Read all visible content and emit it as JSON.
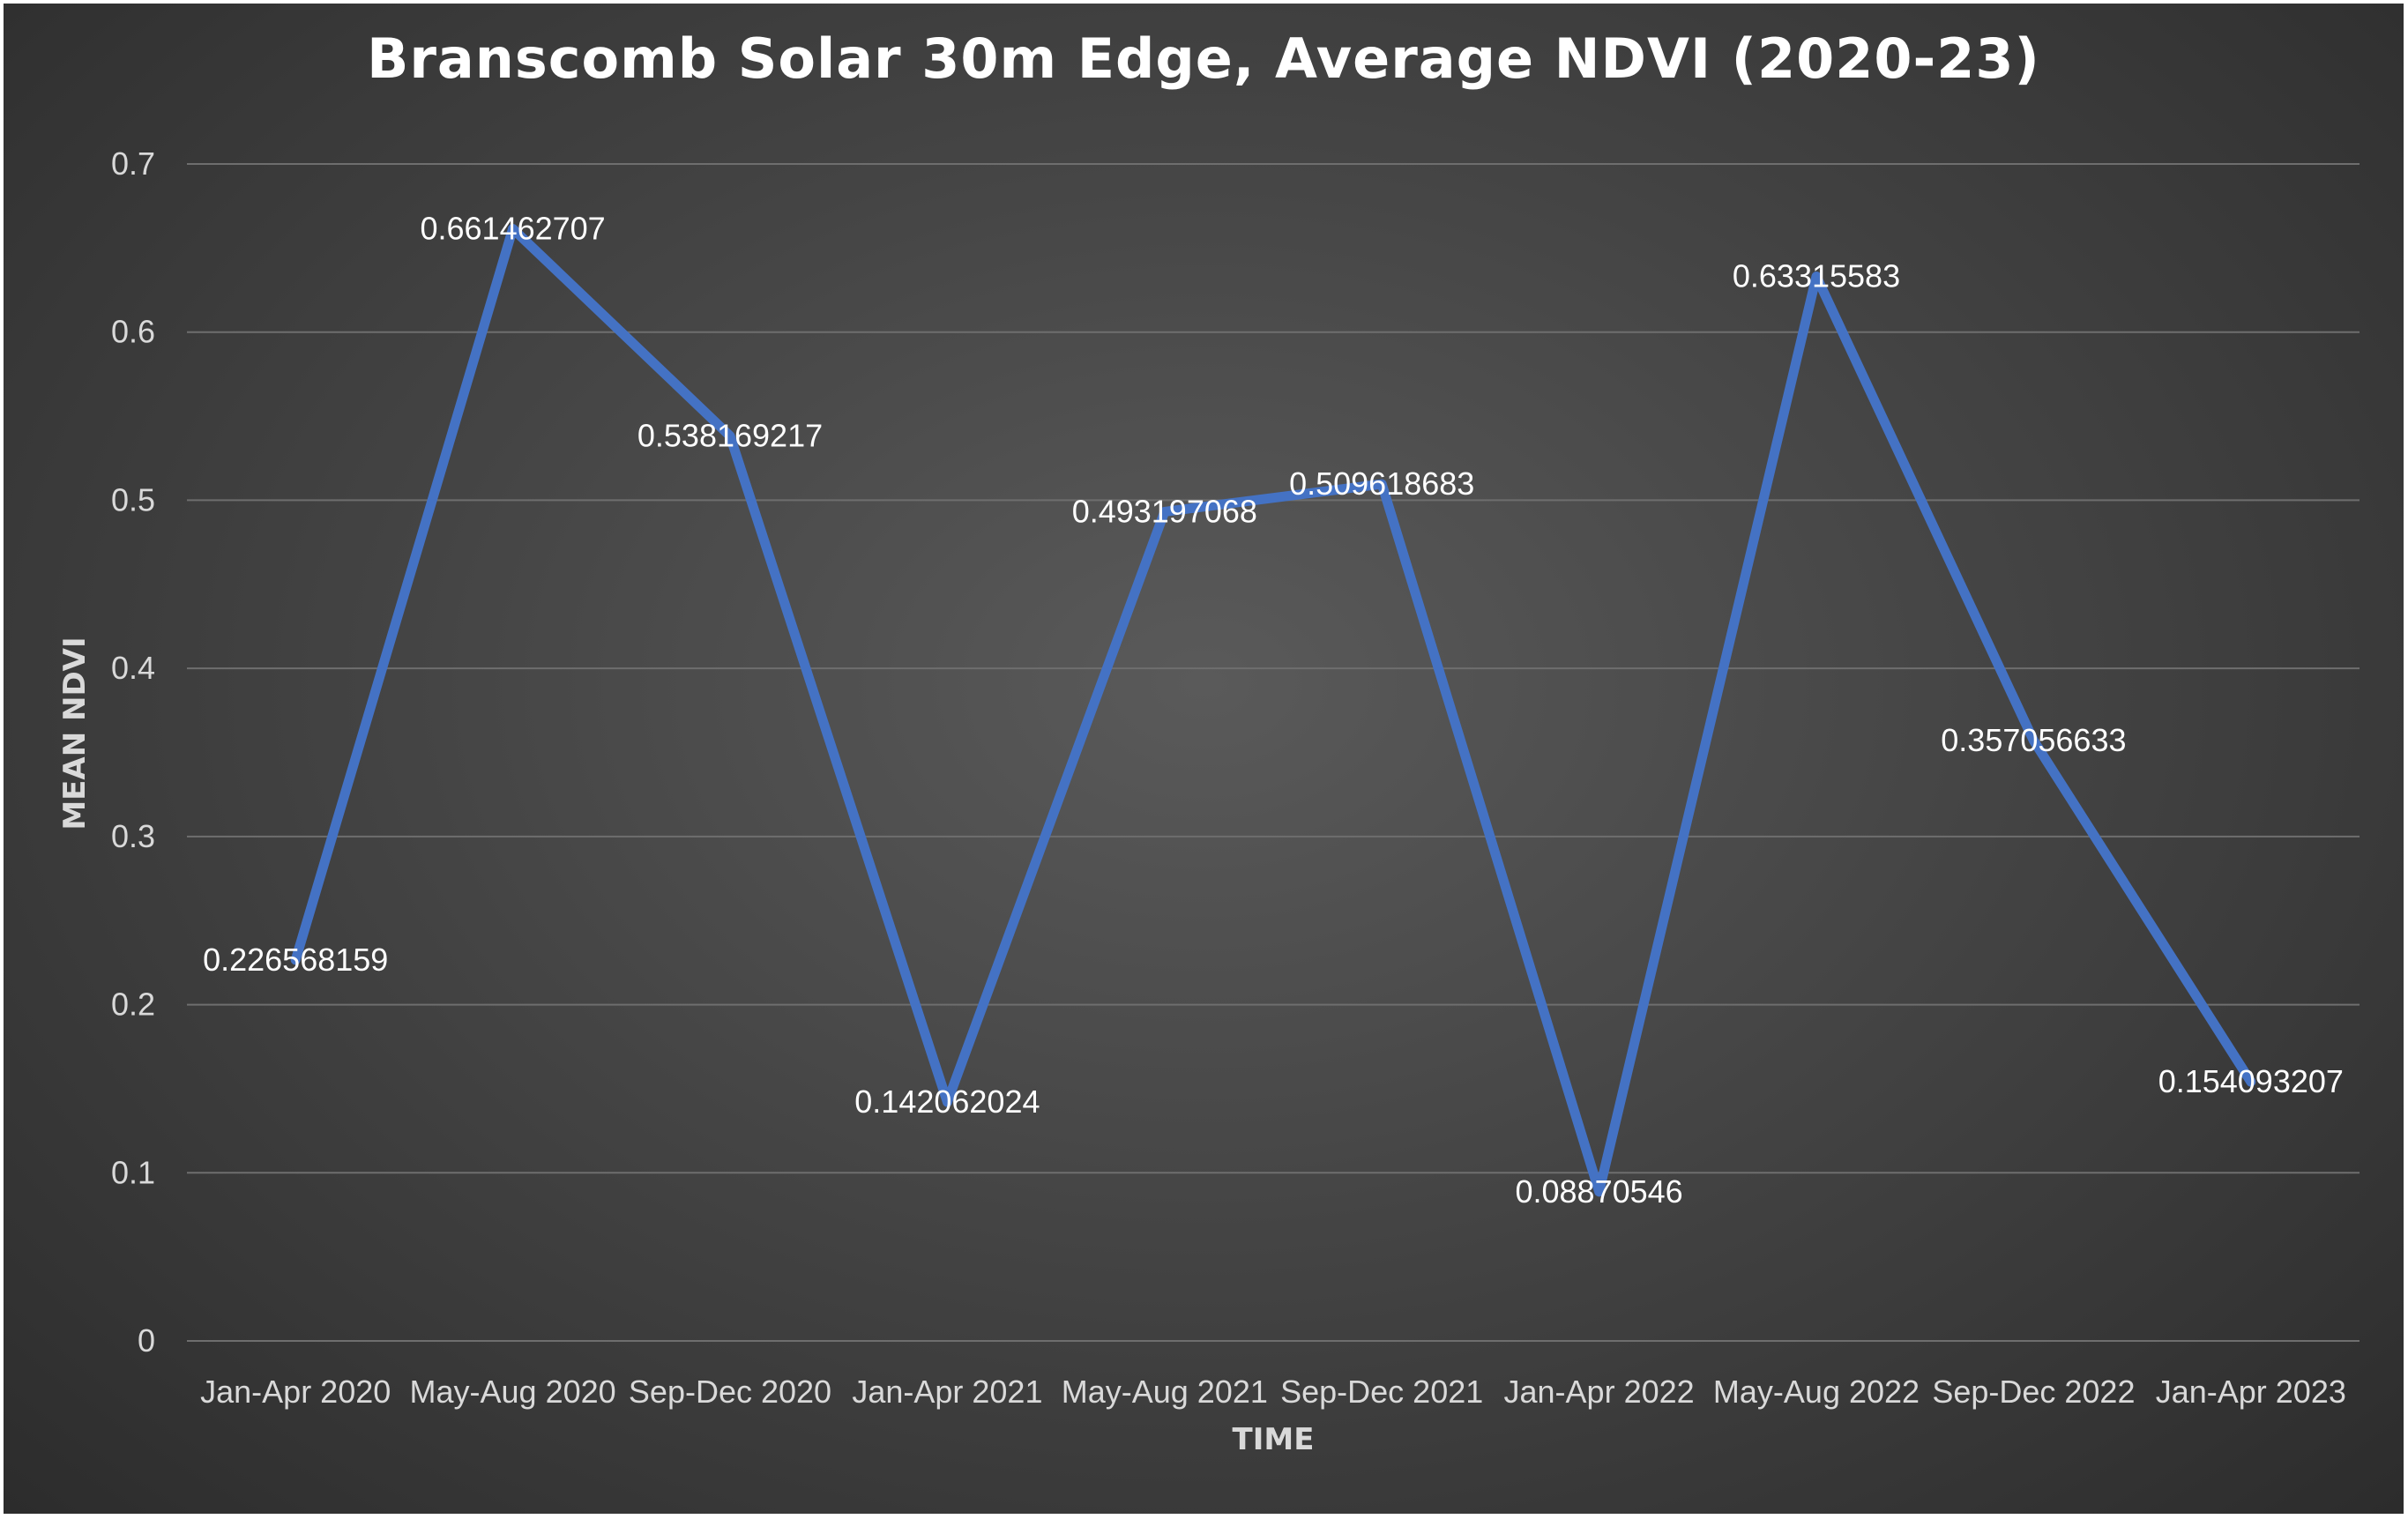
{
  "chart_data": {
    "type": "line",
    "title": "Branscomb Solar 30m Edge, Average NDVI (2020-23)",
    "xlabel": "TIME",
    "ylabel": "MEAN NDVI",
    "ylim": [
      0,
      0.7
    ],
    "yticks": [
      "0",
      "0.1",
      "0.2",
      "0.3",
      "0.4",
      "0.5",
      "0.6",
      "0.7"
    ],
    "grid": true,
    "categories": [
      "Jan-Apr 2020",
      "May-Aug 2020",
      "Sep-Dec 2020",
      "Jan-Apr 2021",
      "May-Aug 2021",
      "Sep-Dec 2021",
      "Jan-Apr 2022",
      "May-Aug 2022",
      "Sep-Dec 2022",
      "Jan-Apr 2023"
    ],
    "series": [
      {
        "values": [
          0.226568159,
          0.661462707,
          0.538169217,
          0.142062024,
          0.493197068,
          0.509618683,
          0.08870546,
          0.63315583,
          0.357056633,
          0.154093207
        ],
        "data_labels": [
          "0.226568159",
          "0.661462707",
          "0.538169217",
          "0.142062024",
          "0.493197068",
          "0.509618683",
          "0.08870546",
          "0.63315583",
          "0.357056633",
          "0.154093207"
        ],
        "color": "#4472c4"
      }
    ],
    "background": "#454545",
    "gridline_color": "#6e6e6e"
  }
}
